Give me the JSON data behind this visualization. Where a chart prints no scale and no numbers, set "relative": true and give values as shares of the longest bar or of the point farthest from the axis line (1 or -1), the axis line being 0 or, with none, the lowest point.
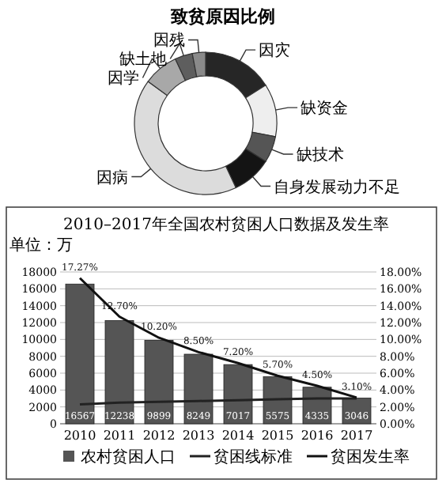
{
  "chart_data": [
    {
      "type": "donut",
      "title": "致贫原因比例",
      "relative": true,
      "categories": [
        "因灾",
        "缺资金",
        "缺技术",
        "自身发展动力不足",
        "因病",
        "因学",
        "缺土地",
        "因残"
      ],
      "values": [
        16,
        12,
        6,
        9,
        42,
        8,
        4,
        3
      ],
      "colors": [
        "#262626",
        "#eeeeee",
        "#555555",
        "#141414",
        "#dcdcdc",
        "#a8a8a8",
        "#5e5e5e",
        "#8a8a8a"
      ]
    },
    {
      "type": "bar",
      "title": "2010–2017年全国农村贫困人口数据及发生率",
      "ylabel": "单位：万",
      "categories": [
        "2010",
        "2011",
        "2012",
        "2013",
        "2014",
        "2015",
        "2016",
        "2017"
      ],
      "ylim": [
        0,
        18000
      ],
      "yticks": [
        0,
        2000,
        4000,
        6000,
        8000,
        10000,
        12000,
        14000,
        16000,
        18000
      ],
      "y2lim": [
        0,
        18
      ],
      "y2ticks": [
        {
          "value": 0,
          "label": "0.00%"
        },
        {
          "value": 2,
          "label": "2.00%"
        },
        {
          "value": 4,
          "label": "4.00%"
        },
        {
          "value": 6,
          "label": "6.00%"
        },
        {
          "value": 8,
          "label": "8.00%"
        },
        {
          "value": 10,
          "label": "10.00%"
        },
        {
          "value": 12,
          "label": "12.00%"
        },
        {
          "value": 14,
          "label": "14.00%"
        },
        {
          "value": 16,
          "label": "16.00%"
        },
        {
          "value": 18,
          "label": "18.00%"
        }
      ],
      "grid": "y",
      "legend": "bottom",
      "series": [
        {
          "name": "农村贫困人口",
          "type": "bar",
          "color": "#555555",
          "values": [
            16567,
            12238,
            9899,
            8249,
            7017,
            5575,
            4335,
            3046
          ],
          "value_labels": [
            "16567",
            "12238",
            "9899",
            "8249",
            "7017",
            "5575",
            "4335",
            "3046"
          ]
        },
        {
          "name": "贫困线标准",
          "type": "line",
          "color": "#222222",
          "values": [
            2300,
            2500,
            2600,
            2700,
            2800,
            2900,
            3000,
            3000
          ]
        },
        {
          "name": "贫困发生率",
          "type": "line",
          "axis": "y2",
          "color": "#111111",
          "values": [
            17.27,
            12.7,
            10.2,
            8.5,
            7.2,
            5.7,
            4.5,
            3.1
          ],
          "value_labels": [
            "17.27%",
            "12.70%",
            "10.20%",
            "8.50%",
            "7.20%",
            "5.70%",
            "4.50%",
            "3.10%"
          ]
        }
      ]
    }
  ]
}
